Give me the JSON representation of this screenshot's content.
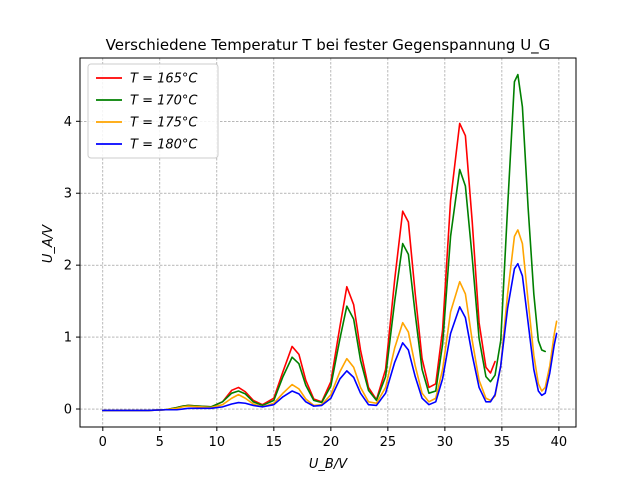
{
  "chart_data": {
    "type": "line",
    "title": "Verschiedene Temperatur T bei fester Gegenspannung U_G",
    "xlabel": "U_B/V",
    "ylabel": "U_A/V",
    "xlim": [
      -2,
      41.5
    ],
    "ylim": [
      -0.25,
      4.88
    ],
    "xticks": [
      0,
      5,
      10,
      15,
      20,
      25,
      30,
      35,
      40
    ],
    "yticks": [
      0,
      1,
      2,
      3,
      4
    ],
    "grid": true,
    "grid_style": "dashed-gray",
    "legend_position": "top-left",
    "series": [
      {
        "name": "T = 165°C",
        "color": "#ff0000",
        "points": [
          [
            0,
            -0.02
          ],
          [
            2,
            -0.02
          ],
          [
            4,
            -0.02
          ],
          [
            5.5,
            -0.01
          ],
          [
            6.5,
            0.02
          ],
          [
            7,
            0.04
          ],
          [
            7.5,
            0.05
          ],
          [
            8.5,
            0.04
          ],
          [
            9.5,
            0.03
          ],
          [
            10.5,
            0.1
          ],
          [
            11.3,
            0.26
          ],
          [
            11.9,
            0.3
          ],
          [
            12.5,
            0.24
          ],
          [
            13.2,
            0.12
          ],
          [
            14,
            0.06
          ],
          [
            15,
            0.15
          ],
          [
            15.8,
            0.52
          ],
          [
            16.6,
            0.87
          ],
          [
            17.2,
            0.76
          ],
          [
            17.8,
            0.4
          ],
          [
            18.5,
            0.14
          ],
          [
            19.2,
            0.1
          ],
          [
            20,
            0.38
          ],
          [
            20.8,
            1.15
          ],
          [
            21.4,
            1.7
          ],
          [
            22,
            1.45
          ],
          [
            22.6,
            0.82
          ],
          [
            23.3,
            0.3
          ],
          [
            24,
            0.13
          ],
          [
            24.8,
            0.55
          ],
          [
            25.6,
            1.8
          ],
          [
            26.3,
            2.75
          ],
          [
            26.8,
            2.6
          ],
          [
            27.4,
            1.6
          ],
          [
            28,
            0.7
          ],
          [
            28.6,
            0.3
          ],
          [
            29.2,
            0.35
          ],
          [
            29.8,
            1.1
          ],
          [
            30.5,
            2.9
          ],
          [
            31.3,
            3.97
          ],
          [
            31.8,
            3.8
          ],
          [
            32.4,
            2.6
          ],
          [
            33,
            1.2
          ],
          [
            33.6,
            0.58
          ],
          [
            34,
            0.5
          ],
          [
            34.4,
            0.66
          ]
        ]
      },
      {
        "name": "T = 170°C",
        "color": "#008000",
        "points": [
          [
            0,
            -0.02
          ],
          [
            2,
            -0.02
          ],
          [
            4,
            -0.02
          ],
          [
            5.5,
            -0.01
          ],
          [
            6.5,
            0.02
          ],
          [
            7,
            0.04
          ],
          [
            7.5,
            0.05
          ],
          [
            8.5,
            0.04
          ],
          [
            9.5,
            0.03
          ],
          [
            10.5,
            0.1
          ],
          [
            11.3,
            0.22
          ],
          [
            11.9,
            0.25
          ],
          [
            12.5,
            0.21
          ],
          [
            13.2,
            0.1
          ],
          [
            14,
            0.05
          ],
          [
            15,
            0.12
          ],
          [
            15.8,
            0.45
          ],
          [
            16.6,
            0.72
          ],
          [
            17.2,
            0.63
          ],
          [
            17.8,
            0.33
          ],
          [
            18.5,
            0.12
          ],
          [
            19.2,
            0.09
          ],
          [
            20,
            0.32
          ],
          [
            20.8,
            0.98
          ],
          [
            21.4,
            1.43
          ],
          [
            22,
            1.25
          ],
          [
            22.6,
            0.68
          ],
          [
            23.3,
            0.26
          ],
          [
            24,
            0.12
          ],
          [
            24.8,
            0.45
          ],
          [
            25.6,
            1.5
          ],
          [
            26.3,
            2.3
          ],
          [
            26.8,
            2.15
          ],
          [
            27.4,
            1.32
          ],
          [
            28,
            0.55
          ],
          [
            28.6,
            0.22
          ],
          [
            29.2,
            0.25
          ],
          [
            29.8,
            0.9
          ],
          [
            30.5,
            2.4
          ],
          [
            31.3,
            3.33
          ],
          [
            31.8,
            3.1
          ],
          [
            32.4,
            2.1
          ],
          [
            33,
            0.98
          ],
          [
            33.6,
            0.45
          ],
          [
            34,
            0.38
          ],
          [
            34.4,
            0.47
          ],
          [
            34.9,
            0.95
          ],
          [
            35.5,
            2.8
          ],
          [
            36.1,
            4.55
          ],
          [
            36.4,
            4.65
          ],
          [
            36.8,
            4.2
          ],
          [
            37.3,
            2.8
          ],
          [
            37.8,
            1.6
          ],
          [
            38.2,
            0.95
          ],
          [
            38.5,
            0.82
          ],
          [
            38.8,
            0.8
          ]
        ]
      },
      {
        "name": "T = 175°C",
        "color": "#ffa500",
        "points": [
          [
            0,
            -0.02
          ],
          [
            2,
            -0.02
          ],
          [
            4,
            -0.02
          ],
          [
            5.5,
            -0.01
          ],
          [
            6.5,
            0.01
          ],
          [
            7,
            0.03
          ],
          [
            7.5,
            0.04
          ],
          [
            8.5,
            0.03
          ],
          [
            9.5,
            0.02
          ],
          [
            10.5,
            0.06
          ],
          [
            11.3,
            0.15
          ],
          [
            11.9,
            0.2
          ],
          [
            12.5,
            0.15
          ],
          [
            13.2,
            0.07
          ],
          [
            14,
            0.03
          ],
          [
            15,
            0.08
          ],
          [
            15.8,
            0.22
          ],
          [
            16.6,
            0.34
          ],
          [
            17.2,
            0.28
          ],
          [
            17.8,
            0.14
          ],
          [
            18.5,
            0.05
          ],
          [
            19.2,
            0.06
          ],
          [
            20,
            0.2
          ],
          [
            20.8,
            0.52
          ],
          [
            21.4,
            0.7
          ],
          [
            22,
            0.58
          ],
          [
            22.6,
            0.3
          ],
          [
            23.3,
            0.1
          ],
          [
            24,
            0.08
          ],
          [
            24.8,
            0.3
          ],
          [
            25.6,
            0.85
          ],
          [
            26.3,
            1.2
          ],
          [
            26.8,
            1.07
          ],
          [
            27.4,
            0.6
          ],
          [
            28,
            0.22
          ],
          [
            28.6,
            0.1
          ],
          [
            29.2,
            0.15
          ],
          [
            29.8,
            0.55
          ],
          [
            30.5,
            1.35
          ],
          [
            31.3,
            1.77
          ],
          [
            31.8,
            1.6
          ],
          [
            32.4,
            0.95
          ],
          [
            33,
            0.4
          ],
          [
            33.6,
            0.15
          ],
          [
            34,
            0.12
          ],
          [
            34.4,
            0.18
          ],
          [
            34.9,
            0.6
          ],
          [
            35.5,
            1.6
          ],
          [
            36.1,
            2.4
          ],
          [
            36.4,
            2.49
          ],
          [
            36.8,
            2.3
          ],
          [
            37.3,
            1.5
          ],
          [
            37.8,
            0.75
          ],
          [
            38.2,
            0.35
          ],
          [
            38.5,
            0.25
          ],
          [
            38.8,
            0.3
          ],
          [
            39.2,
            0.6
          ],
          [
            39.6,
            1.05
          ],
          [
            39.8,
            1.22
          ]
        ]
      },
      {
        "name": "T = 180°C",
        "color": "#0000ff",
        "points": [
          [
            0,
            -0.02
          ],
          [
            2,
            -0.02
          ],
          [
            4,
            -0.02
          ],
          [
            5.5,
            -0.01
          ],
          [
            6.5,
            -0.01
          ],
          [
            7,
            0
          ],
          [
            7.5,
            0.01
          ],
          [
            8.5,
            0.01
          ],
          [
            9.5,
            0.01
          ],
          [
            10.5,
            0.03
          ],
          [
            11.3,
            0.07
          ],
          [
            11.9,
            0.09
          ],
          [
            12.5,
            0.08
          ],
          [
            13.2,
            0.05
          ],
          [
            14,
            0.03
          ],
          [
            15,
            0.06
          ],
          [
            15.8,
            0.17
          ],
          [
            16.6,
            0.25
          ],
          [
            17.2,
            0.21
          ],
          [
            17.8,
            0.1
          ],
          [
            18.5,
            0.04
          ],
          [
            19.2,
            0.05
          ],
          [
            20,
            0.15
          ],
          [
            20.8,
            0.42
          ],
          [
            21.4,
            0.53
          ],
          [
            22,
            0.44
          ],
          [
            22.6,
            0.22
          ],
          [
            23.3,
            0.06
          ],
          [
            24,
            0.05
          ],
          [
            24.8,
            0.22
          ],
          [
            25.6,
            0.65
          ],
          [
            26.3,
            0.92
          ],
          [
            26.8,
            0.82
          ],
          [
            27.4,
            0.45
          ],
          [
            28,
            0.15
          ],
          [
            28.6,
            0.06
          ],
          [
            29.2,
            0.1
          ],
          [
            29.8,
            0.42
          ],
          [
            30.5,
            1.05
          ],
          [
            31.3,
            1.42
          ],
          [
            31.8,
            1.27
          ],
          [
            32.4,
            0.75
          ],
          [
            33,
            0.3
          ],
          [
            33.6,
            0.1
          ],
          [
            34,
            0.1
          ],
          [
            34.4,
            0.2
          ],
          [
            34.9,
            0.6
          ],
          [
            35.5,
            1.4
          ],
          [
            36.1,
            1.95
          ],
          [
            36.4,
            2.02
          ],
          [
            36.8,
            1.85
          ],
          [
            37.3,
            1.2
          ],
          [
            37.8,
            0.55
          ],
          [
            38.2,
            0.25
          ],
          [
            38.5,
            0.19
          ],
          [
            38.8,
            0.22
          ],
          [
            39.2,
            0.5
          ],
          [
            39.6,
            0.9
          ],
          [
            39.8,
            1.05
          ]
        ]
      }
    ]
  }
}
